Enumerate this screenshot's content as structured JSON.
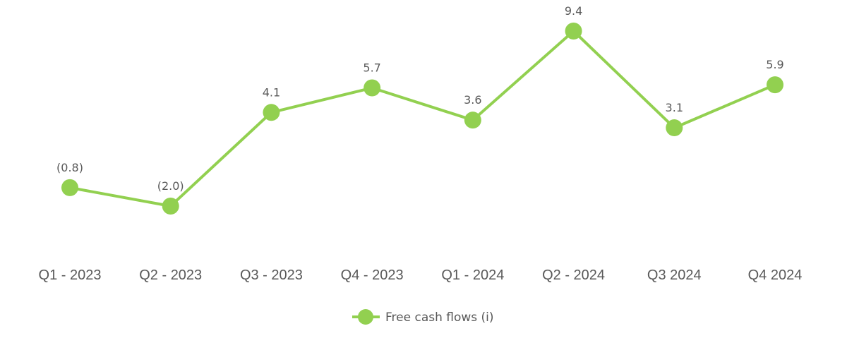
{
  "chart_data": {
    "type": "line",
    "title": "",
    "xlabel": "",
    "ylabel": "",
    "categories": [
      "Q1 - 2023",
      "Q2 - 2023",
      "Q3 - 2023",
      "Q4 - 2023",
      "Q1 - 2024",
      "Q2 - 2024",
      "Q3 2024",
      "Q4 2024"
    ],
    "series": [
      {
        "name": "Free cash flows (i)",
        "values": [
          -0.8,
          -2.0,
          4.1,
          5.7,
          3.6,
          9.4,
          3.1,
          5.9
        ],
        "labels": [
          "(0.8)",
          "(2.0)",
          "4.1",
          "5.7",
          "3.6",
          "9.4",
          "3.1",
          "5.9"
        ],
        "color": "#92D050"
      }
    ],
    "grid": false,
    "y_axis_visible": false,
    "legend_position": "bottom",
    "ylim": [
      -3,
      10
    ]
  },
  "colors": {
    "series": "#92D050",
    "text": "#595959",
    "background": "#FFFFFF"
  },
  "legend": {
    "label": "Free cash flows (i)",
    "marker": "line-with-circle-marker"
  }
}
